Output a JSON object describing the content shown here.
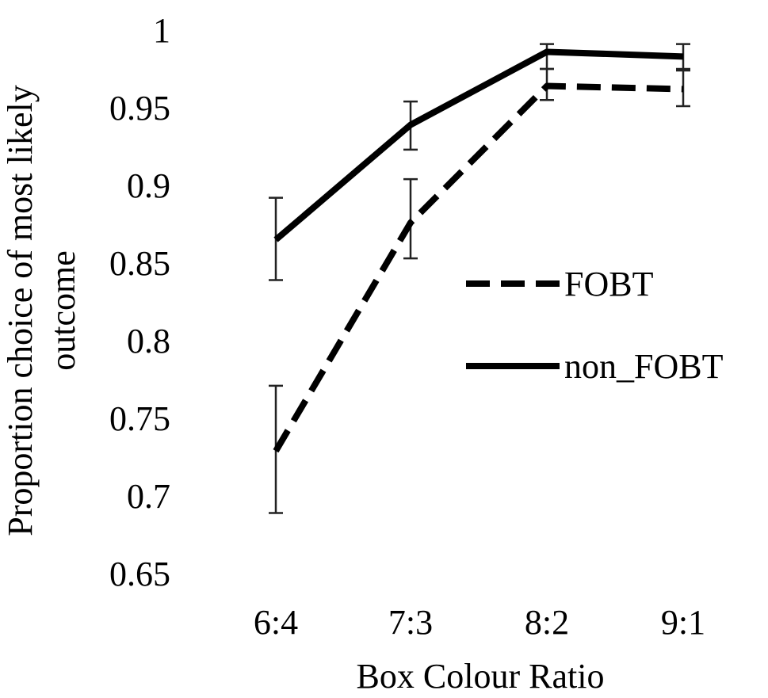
{
  "chart_data": {
    "type": "line",
    "title": "",
    "xlabel": "Box Colour Ratio",
    "ylabel_line1": "Proportion choice of most likely",
    "ylabel_line2": "outcome",
    "categories": [
      "6:4",
      "7:3",
      "8:2",
      "9:1"
    ],
    "ylim": [
      0.65,
      1
    ],
    "yticks": [
      0.65,
      0.7,
      0.75,
      0.8,
      0.85,
      0.9,
      0.95,
      1
    ],
    "ytick_labels": [
      "0.65",
      "0.7",
      "0.75",
      "0.8",
      "0.85",
      "0.9",
      "0.95",
      "1"
    ],
    "grid": false,
    "legend_position": "right",
    "series": [
      {
        "name": "FOBT",
        "style": "dashed",
        "color": "#000000",
        "values": [
          0.729,
          0.876,
          0.964,
          0.962
        ],
        "error_low": [
          0.689,
          0.853,
          0.955,
          0.951
        ],
        "error_high": [
          0.771,
          0.904,
          0.975,
          0.974
        ]
      },
      {
        "name": "non_FOBT",
        "style": "solid",
        "color": "#000000",
        "values": [
          0.865,
          0.939,
          0.986,
          0.983
        ],
        "error_low": [
          0.839,
          0.923,
          0.975,
          0.975
        ],
        "error_high": [
          0.892,
          0.954,
          0.991,
          0.991
        ]
      }
    ]
  }
}
